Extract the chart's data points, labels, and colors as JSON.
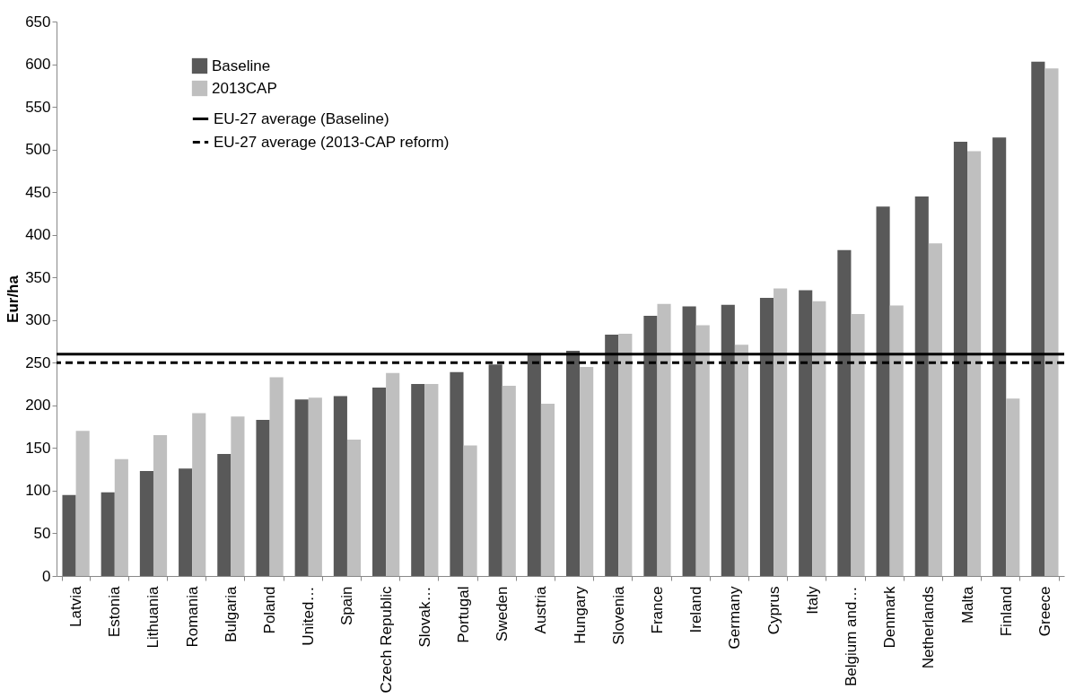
{
  "chart_data": {
    "type": "bar",
    "ylabel": "Eur/ha",
    "categories": [
      "Latvia",
      "Estonia",
      "Lithuania",
      "Romania",
      "Bulgaria",
      "Poland",
      "United…",
      "Spain",
      "Czech Republic",
      "Slovak…",
      "Portugal",
      "Sweden",
      "Austria",
      "Hungary",
      "Slovenia",
      "France",
      "Ireland",
      "Germany",
      "Cyprus",
      "Italy",
      "Belgium and…",
      "Denmark",
      "Netherlands",
      "Malta",
      "Finland",
      "Greece"
    ],
    "series": [
      {
        "name": "Baseline",
        "color": "#595959",
        "values": [
          95,
          98,
          123,
          126,
          143,
          183,
          207,
          211,
          221,
          225,
          239,
          248,
          261,
          264,
          283,
          305,
          316,
          318,
          326,
          335,
          382,
          433,
          445,
          509,
          514,
          603
        ]
      },
      {
        "name": "2013CAP",
        "color": "#bfbfbf",
        "values": [
          170,
          137,
          165,
          191,
          187,
          233,
          209,
          160,
          238,
          225,
          153,
          223,
          202,
          245,
          284,
          319,
          294,
          271,
          337,
          322,
          307,
          317,
          390,
          498,
          208,
          595
        ]
      }
    ],
    "ref_lines": [
      {
        "axis": "y",
        "value": 260,
        "label": "EU-27 average (Baseline)",
        "color": "#000000",
        "line_style": "solid"
      },
      {
        "axis": "y",
        "value": 250,
        "label": "EU-27 average (2013-CAP reform)",
        "color": "#000000",
        "line_style": "dashed"
      }
    ],
    "ylim": [
      0,
      650
    ],
    "yticks": [
      0,
      50,
      100,
      150,
      200,
      250,
      300,
      350,
      400,
      450,
      500,
      550,
      600,
      650
    ],
    "grid": false,
    "legend": "top left"
  }
}
